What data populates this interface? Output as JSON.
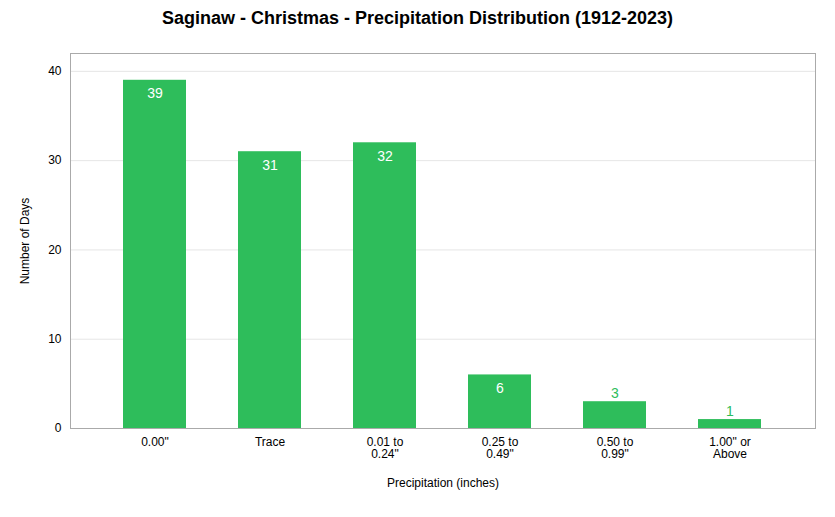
{
  "chart_data": {
    "type": "bar",
    "title": "Saginaw - Christmas - Precipitation Distribution (1912-2023)",
    "categories": [
      "0.00\"",
      "Trace",
      "0.01 to\n0.24\"",
      "0.25 to\n0.49\"",
      "0.50 to\n0.99\"",
      "1.00\" or\nAbove"
    ],
    "values": [
      39,
      31,
      32,
      6,
      3,
      1
    ],
    "color": "#2ebd5b",
    "xlabel": "Precipitation (inches)",
    "ylabel": "Number of Days",
    "ylim": [
      0,
      42
    ],
    "yticks": [
      0,
      10,
      20,
      30,
      40
    ],
    "grid": true,
    "data_labels": true
  }
}
